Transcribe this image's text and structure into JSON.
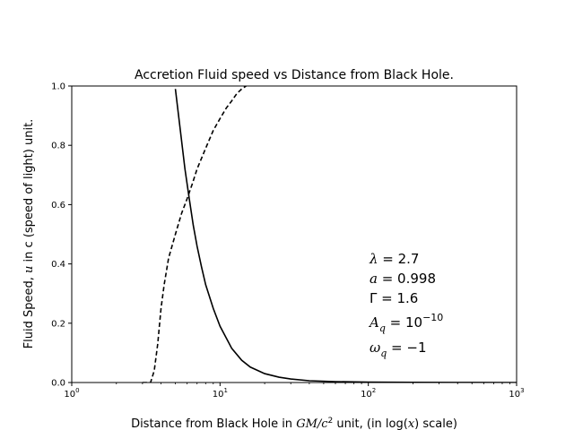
{
  "chart_data": {
    "type": "line",
    "title": "Accretion Fluid speed vs Distance from Black Hole.",
    "xlabel": {
      "prefix": "Distance from Black Hole in ",
      "math": "GM/c",
      "sup": "2",
      "middle": " unit, (in log(",
      "var": "x",
      "suffix": ") scale)"
    },
    "ylabel": {
      "prefix": "Fluid Speed, ",
      "var": "u",
      "suffix": " in c (speed of light) unit."
    },
    "x_scale": "log",
    "xlim": [
      1,
      1000
    ],
    "ylim": [
      0,
      1
    ],
    "x_ticks": [
      {
        "base": "10",
        "exp": "0"
      },
      {
        "base": "10",
        "exp": "1"
      },
      {
        "base": "10",
        "exp": "2"
      },
      {
        "base": "10",
        "exp": "3"
      }
    ],
    "y_ticks": [
      "0.0",
      "0.2",
      "0.4",
      "0.6",
      "0.8",
      "1.0"
    ],
    "grid": false,
    "legend": "none",
    "series": [
      {
        "style": "solid",
        "color": "#000000",
        "x": [
          5.0,
          5.4,
          5.8,
          6.2,
          6.6,
          7.0,
          7.5,
          8,
          9,
          10,
          12,
          14,
          16,
          20,
          25,
          30,
          40,
          60,
          100,
          200,
          500,
          1000
        ],
        "y": [
          0.99,
          0.85,
          0.72,
          0.62,
          0.53,
          0.46,
          0.39,
          0.33,
          0.25,
          0.19,
          0.115,
          0.075,
          0.052,
          0.03,
          0.018,
          0.012,
          0.006,
          0.003,
          0.0015,
          0.0005,
          0.0001,
          0.0
        ]
      },
      {
        "style": "dashed",
        "color": "#000000",
        "x": [
          3.0,
          3.4,
          3.6,
          3.8,
          4.0,
          4.2,
          4.5,
          5,
          5.5,
          6,
          6.5,
          7,
          8,
          9,
          10,
          11,
          12,
          13,
          14,
          15
        ],
        "y": [
          0.0,
          0.0,
          0.04,
          0.13,
          0.25,
          0.33,
          0.42,
          0.5,
          0.57,
          0.62,
          0.67,
          0.72,
          0.79,
          0.85,
          0.89,
          0.925,
          0.95,
          0.975,
          0.99,
          1.0
        ]
      }
    ],
    "annotations": [
      {
        "parts": [
          {
            "t": "λ",
            "i": true
          },
          {
            "t": " = 2.7"
          }
        ]
      },
      {
        "parts": [
          {
            "t": "a",
            "i": true
          },
          {
            "t": " = 0.998"
          }
        ]
      },
      {
        "parts": [
          {
            "t": "Γ = 1.6"
          }
        ]
      },
      {
        "parts": [
          {
            "t": "A",
            "i": true
          },
          {
            "t": "q",
            "i": true,
            "sub": true
          },
          {
            "t": " = 10"
          },
          {
            "t": "−10",
            "sup": true
          }
        ]
      },
      {
        "parts": [
          {
            "t": "ω",
            "i": true
          },
          {
            "t": "q",
            "i": true,
            "sub": true
          },
          {
            "t": " = −1"
          }
        ]
      }
    ]
  }
}
